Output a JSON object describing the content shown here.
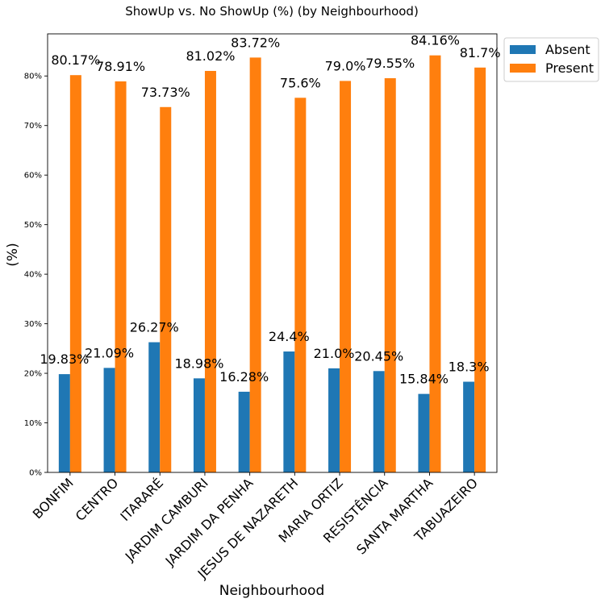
{
  "chart_data": {
    "type": "bar",
    "title": "ShowUp vs. No ShowUp (%) (by Neighbourhood)",
    "xlabel": "Neighbourhood",
    "ylabel": "(%)",
    "ylim": [
      0,
      88.5
    ],
    "y_ticks": [
      0,
      10,
      20,
      30,
      40,
      50,
      60,
      70,
      80
    ],
    "y_tick_labels": [
      "0%",
      "10%",
      "20%",
      "30%",
      "40%",
      "50%",
      "60%",
      "70%",
      "80%"
    ],
    "grid": false,
    "legend_position": "outside-top-right",
    "categories": [
      "BONFIM",
      "CENTRO",
      "ITARARÉ",
      "JARDIM CAMBURI",
      "JARDIM DA PENHA",
      "JESUS DE NAZARETH",
      "MARIA ORTIZ",
      "RESISTÊNCIA",
      "SANTA MARTHA",
      "TABUAZEIRO"
    ],
    "series": [
      {
        "name": "Absent",
        "color": "#1f77b4",
        "values": [
          19.83,
          21.09,
          26.27,
          18.98,
          16.28,
          24.4,
          21.0,
          20.45,
          15.84,
          18.3
        ],
        "labels": [
          "19.83%",
          "21.09%",
          "26.27%",
          "18.98%",
          "16.28%",
          "24.4%",
          "21.0%",
          "20.45%",
          "15.84%",
          "18.3%"
        ]
      },
      {
        "name": "Present",
        "color": "#ff7f0e",
        "values": [
          80.17,
          78.91,
          73.73,
          81.02,
          83.72,
          75.6,
          79.0,
          79.55,
          84.16,
          81.7
        ],
        "labels": [
          "80.17%",
          "78.91%",
          "73.73%",
          "81.02%",
          "83.72%",
          "75.6%",
          "79.0%",
          "79.55%",
          "84.16%",
          "81.7%"
        ]
      }
    ]
  }
}
